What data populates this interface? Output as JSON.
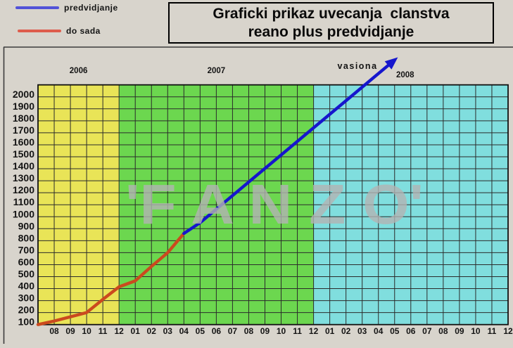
{
  "page": {
    "background": "#d8d4cc"
  },
  "legend": {
    "items": [
      {
        "label": "predvidjanje",
        "color": "#5252d8"
      },
      {
        "label": "do sada",
        "color": "#de5c4c"
      }
    ]
  },
  "title": {
    "line1": "Graficki prikaz uvecanja  clanstva",
    "line2": "reano plus predvidjanje"
  },
  "watermark": {
    "text": "'F A N Z O'",
    "color": "#b3b3b3"
  },
  "chart_data": {
    "type": "line",
    "title": "Graficki prikaz uvecanja clanstva reano plus predvidjanje",
    "annotation": "vasiona",
    "grid": true,
    "legend_position": "top-left",
    "ylim": [
      100,
      2100
    ],
    "y_ticks": [
      2000,
      1900,
      1800,
      1700,
      1600,
      1500,
      1400,
      1300,
      1200,
      1100,
      1000,
      900,
      800,
      700,
      600,
      500,
      400,
      300,
      200,
      100
    ],
    "x_tick_labels": [
      "08",
      "09",
      "10",
      "11",
      "12",
      "01",
      "02",
      "03",
      "04",
      "05",
      "06",
      "07",
      "08",
      "09",
      "10",
      "11",
      "12",
      "01",
      "02",
      "03",
      "04",
      "05",
      "06",
      "07",
      "08",
      "09",
      "10",
      "11",
      "12"
    ],
    "year_bands": [
      {
        "label": "2006",
        "color": "#e9e457",
        "from_index": 0,
        "to_index": 5
      },
      {
        "label": "2007",
        "color": "#6cd74f",
        "from_index": 5,
        "to_index": 17
      },
      {
        "label": "2008",
        "color": "#80dede",
        "from_index": 17,
        "to_index": 29
      }
    ],
    "series": [
      {
        "name": "do sada",
        "color": "#cb4a1e",
        "arrow": false,
        "points": [
          [
            0,
            100
          ],
          [
            1,
            130
          ],
          [
            2,
            165
          ],
          [
            3,
            200
          ],
          [
            4,
            310
          ],
          [
            5,
            415
          ],
          [
            6,
            465
          ],
          [
            7,
            585
          ],
          [
            8,
            700
          ],
          [
            9,
            860
          ]
        ]
      },
      {
        "name": "predvidjanje",
        "color": "#1616cd",
        "arrow": true,
        "points": [
          [
            9,
            860
          ],
          [
            10,
            950
          ],
          [
            22.2,
            2330
          ]
        ]
      }
    ]
  }
}
